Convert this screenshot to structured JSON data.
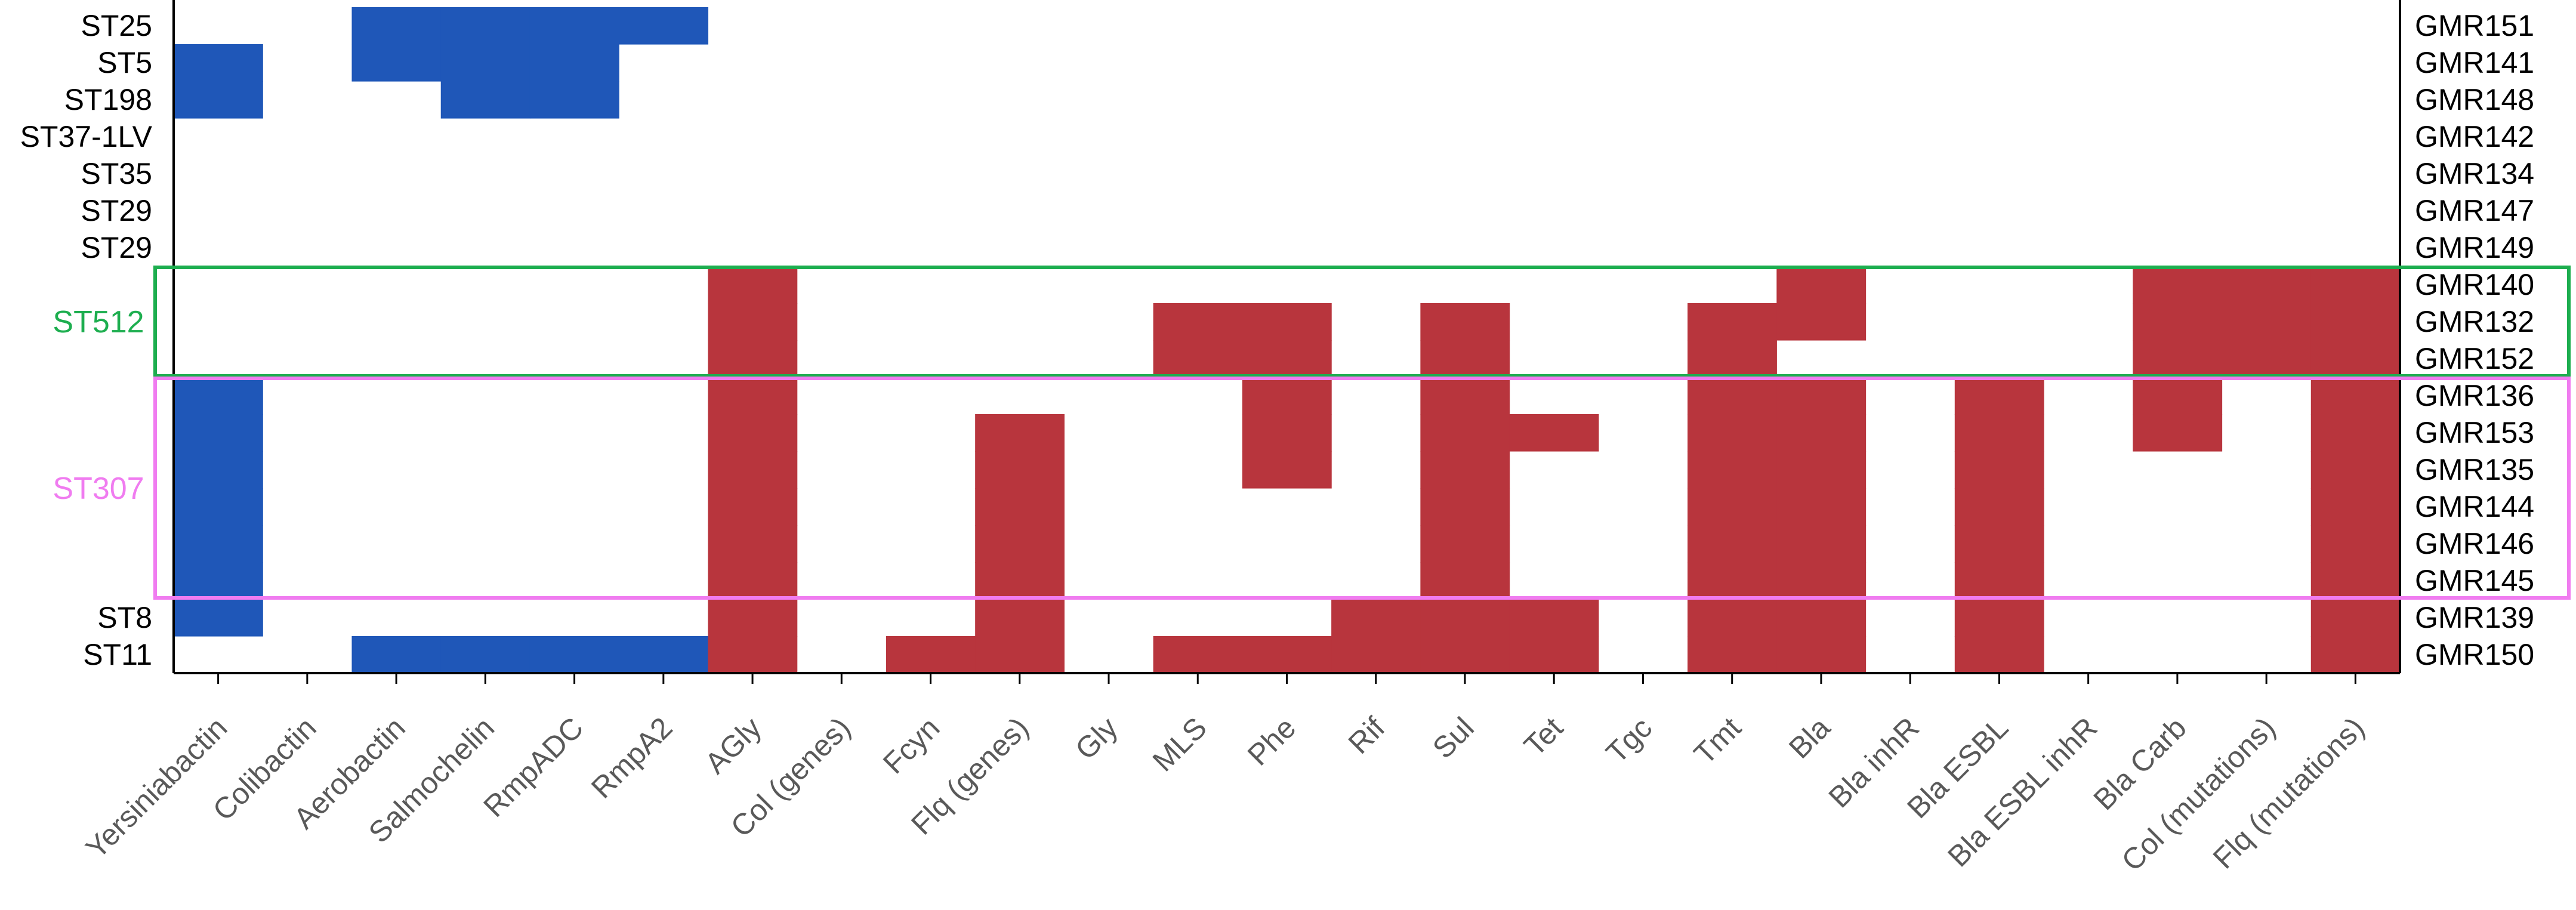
{
  "colors": {
    "virulence": "#1F57B8",
    "resistance": "#B8353D",
    "st512_box": "#1DAE4F",
    "st307_box": "#F07CF0",
    "axis": "#000000",
    "tick_text": "#595959"
  },
  "chart_data": {
    "type": "heatmap",
    "title": "",
    "xlabel": "",
    "ylabel": "",
    "columns": [
      "Yersiniabactin",
      "Colibactin",
      "Aerobactin",
      "Salmochelin",
      "RmpADC",
      "RmpA2",
      "AGly",
      "Col (genes)",
      "Fcyn",
      "Flq (genes)",
      "Gly",
      "MLS",
      "Phe",
      "Rif",
      "Sul",
      "Tet",
      "Tgc",
      "Tmt",
      "Bla",
      "Bla inhR",
      "Bla ESBL",
      "Bla ESBL inhR",
      "Bla Carb",
      "Col (mutations)",
      "Flq (mutations)"
    ],
    "virulence_columns": [
      "Yersiniabactin",
      "Colibactin",
      "Aerobactin",
      "Salmochelin",
      "RmpADC",
      "RmpA2"
    ],
    "rows_left_labels": [
      "ST25",
      "ST5",
      "ST198",
      "ST37-1LV",
      "ST35",
      "ST29",
      "ST29",
      "",
      "",
      "",
      "",
      "",
      "",
      "",
      "",
      "",
      "ST8",
      "ST11"
    ],
    "rows_right_labels": [
      "GMR151",
      "GMR141",
      "GMR148",
      "GMR142",
      "GMR134",
      "GMR147",
      "GMR149",
      "GMR140",
      "GMR132",
      "GMR152",
      "GMR136",
      "GMR153",
      "GMR135",
      "GMR144",
      "GMR146",
      "GMR145",
      "GMR139",
      "GMR150"
    ],
    "groups": [
      {
        "label": "ST512",
        "rows": [
          7,
          9
        ]
      },
      {
        "label": "ST307",
        "rows": [
          10,
          15
        ]
      }
    ],
    "matrix": [
      [
        0,
        0,
        1,
        1,
        1,
        1,
        0,
        0,
        0,
        0,
        0,
        0,
        0,
        0,
        0,
        0,
        0,
        0,
        0,
        0,
        0,
        0,
        0,
        0,
        0
      ],
      [
        1,
        0,
        1,
        1,
        1,
        0,
        0,
        0,
        0,
        0,
        0,
        0,
        0,
        0,
        0,
        0,
        0,
        0,
        0,
        0,
        0,
        0,
        0,
        0,
        0
      ],
      [
        1,
        0,
        0,
        1,
        1,
        0,
        0,
        0,
        0,
        0,
        0,
        0,
        0,
        0,
        0,
        0,
        0,
        0,
        0,
        0,
        0,
        0,
        0,
        0,
        0
      ],
      [
        0,
        0,
        0,
        0,
        0,
        0,
        0,
        0,
        0,
        0,
        0,
        0,
        0,
        0,
        0,
        0,
        0,
        0,
        0,
        0,
        0,
        0,
        0,
        0,
        0
      ],
      [
        0,
        0,
        0,
        0,
        0,
        0,
        0,
        0,
        0,
        0,
        0,
        0,
        0,
        0,
        0,
        0,
        0,
        0,
        0,
        0,
        0,
        0,
        0,
        0,
        0
      ],
      [
        0,
        0,
        0,
        0,
        0,
        0,
        0,
        0,
        0,
        0,
        0,
        0,
        0,
        0,
        0,
        0,
        0,
        0,
        0,
        0,
        0,
        0,
        0,
        0,
        0
      ],
      [
        0,
        0,
        0,
        0,
        0,
        0,
        0,
        0,
        0,
        0,
        0,
        0,
        0,
        0,
        0,
        0,
        0,
        0,
        0,
        0,
        0,
        0,
        0,
        0,
        0
      ],
      [
        0,
        0,
        0,
        0,
        0,
        0,
        1,
        0,
        0,
        0,
        0,
        0,
        0,
        0,
        0,
        0,
        0,
        0,
        1,
        0,
        0,
        0,
        1,
        1,
        1
      ],
      [
        0,
        0,
        0,
        0,
        0,
        0,
        1,
        0,
        0,
        0,
        0,
        1,
        1,
        0,
        1,
        0,
        0,
        1,
        1,
        0,
        0,
        0,
        1,
        1,
        1
      ],
      [
        0,
        0,
        0,
        0,
        0,
        0,
        1,
        0,
        0,
        0,
        0,
        1,
        1,
        0,
        1,
        0,
        0,
        1,
        0,
        0,
        0,
        0,
        1,
        1,
        1
      ],
      [
        1,
        0,
        0,
        0,
        0,
        0,
        1,
        0,
        0,
        0,
        0,
        0,
        1,
        0,
        1,
        0,
        0,
        1,
        1,
        0,
        1,
        0,
        1,
        0,
        1
      ],
      [
        1,
        0,
        0,
        0,
        0,
        0,
        1,
        0,
        0,
        1,
        0,
        0,
        1,
        0,
        1,
        1,
        0,
        1,
        1,
        0,
        1,
        0,
        1,
        0,
        1
      ],
      [
        1,
        0,
        0,
        0,
        0,
        0,
        1,
        0,
        0,
        1,
        0,
        0,
        1,
        0,
        1,
        0,
        0,
        1,
        1,
        0,
        1,
        0,
        0,
        0,
        1
      ],
      [
        1,
        0,
        0,
        0,
        0,
        0,
        1,
        0,
        0,
        1,
        0,
        0,
        0,
        0,
        1,
        0,
        0,
        1,
        1,
        0,
        1,
        0,
        0,
        0,
        1
      ],
      [
        1,
        0,
        0,
        0,
        0,
        0,
        1,
        0,
        0,
        1,
        0,
        0,
        0,
        0,
        1,
        0,
        0,
        1,
        1,
        0,
        1,
        0,
        0,
        0,
        1
      ],
      [
        1,
        0,
        0,
        0,
        0,
        0,
        1,
        0,
        0,
        1,
        0,
        0,
        0,
        0,
        1,
        0,
        0,
        1,
        1,
        0,
        1,
        0,
        0,
        0,
        1
      ],
      [
        1,
        0,
        0,
        0,
        0,
        0,
        1,
        0,
        0,
        1,
        0,
        0,
        0,
        1,
        1,
        1,
        0,
        1,
        1,
        0,
        1,
        0,
        0,
        0,
        1
      ],
      [
        0,
        0,
        1,
        1,
        1,
        1,
        1,
        0,
        1,
        1,
        0,
        1,
        1,
        1,
        1,
        1,
        0,
        1,
        1,
        0,
        1,
        0,
        0,
        0,
        1
      ]
    ]
  }
}
